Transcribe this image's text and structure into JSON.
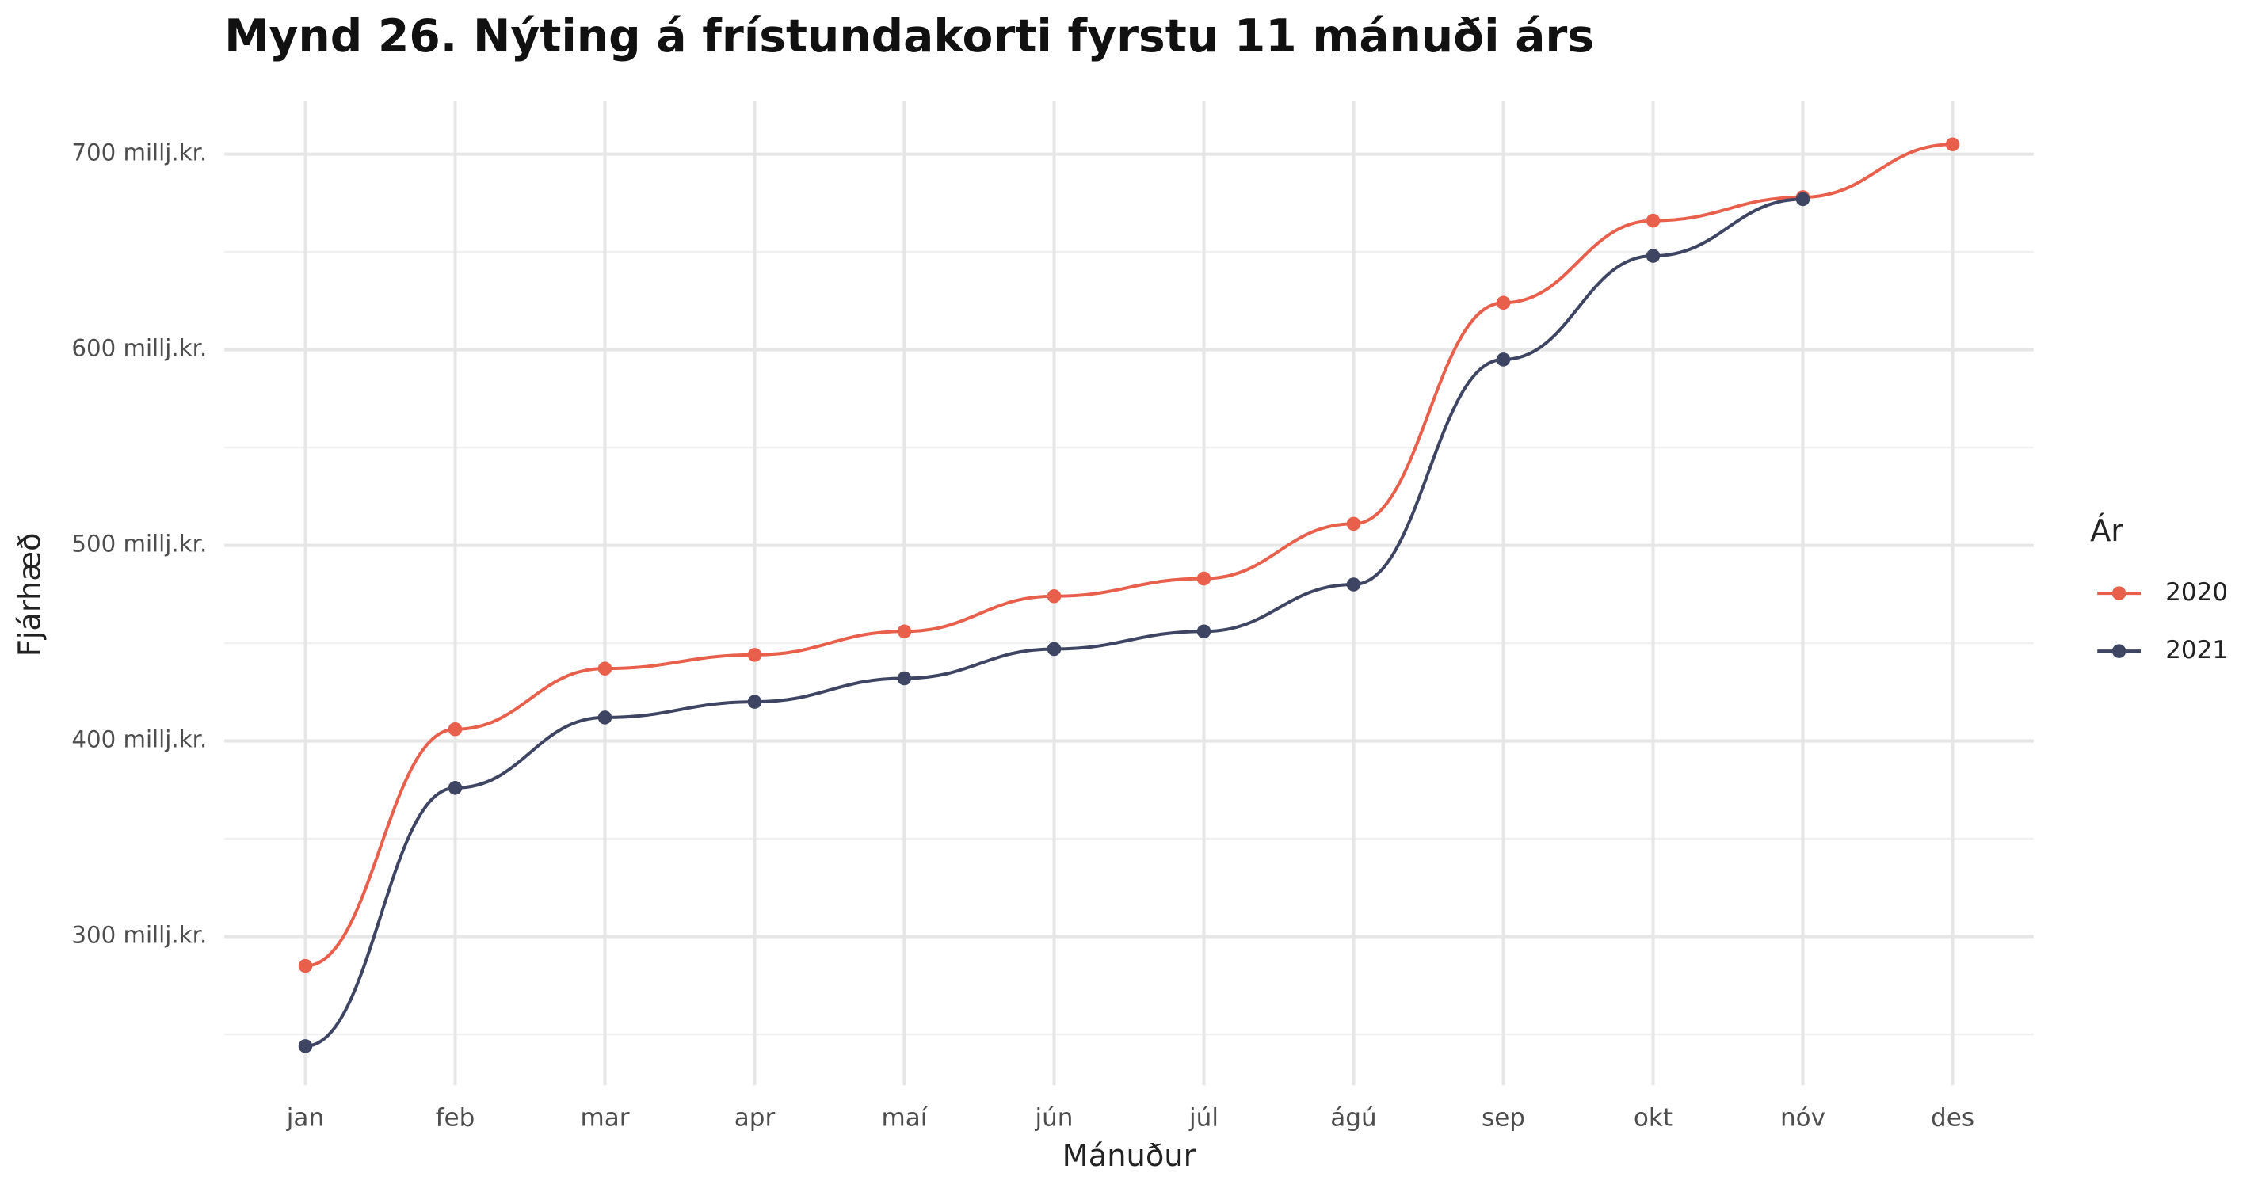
{
  "chart_data": {
    "type": "line",
    "title": "Mynd 26. Nýting á frístundakorti fyrstu 11 mánuði árs",
    "x_label": "Mánuður",
    "y_label": "Fjárhæð",
    "legend_title": "Ár",
    "legend_position": "right",
    "categories": [
      "jan",
      "feb",
      "mar",
      "apr",
      "maí",
      "jún",
      "júl",
      "ágú",
      "sep",
      "okt",
      "nóv",
      "des"
    ],
    "series": [
      {
        "name": "2020",
        "color": "#e8604c",
        "values": [
          285,
          406,
          437,
          444,
          456,
          474,
          483,
          511,
          624,
          666,
          678,
          705
        ]
      },
      {
        "name": "2021",
        "color": "#3d4562",
        "values": [
          244,
          376,
          412,
          420,
          432,
          447,
          456,
          480,
          595,
          648,
          677,
          null
        ]
      }
    ],
    "ylim": [
      224,
      727
    ],
    "yticks": [
      {
        "value": 300,
        "label": "300 millj.kr."
      },
      {
        "value": 400,
        "label": "400 millj.kr."
      },
      {
        "value": 500,
        "label": "500 millj.kr."
      },
      {
        "value": 600,
        "label": "600 millj.kr."
      },
      {
        "value": 700,
        "label": "700 millj.kr."
      }
    ],
    "y_minor_ticks": [
      250,
      350,
      450,
      550,
      650
    ],
    "grid": true
  }
}
